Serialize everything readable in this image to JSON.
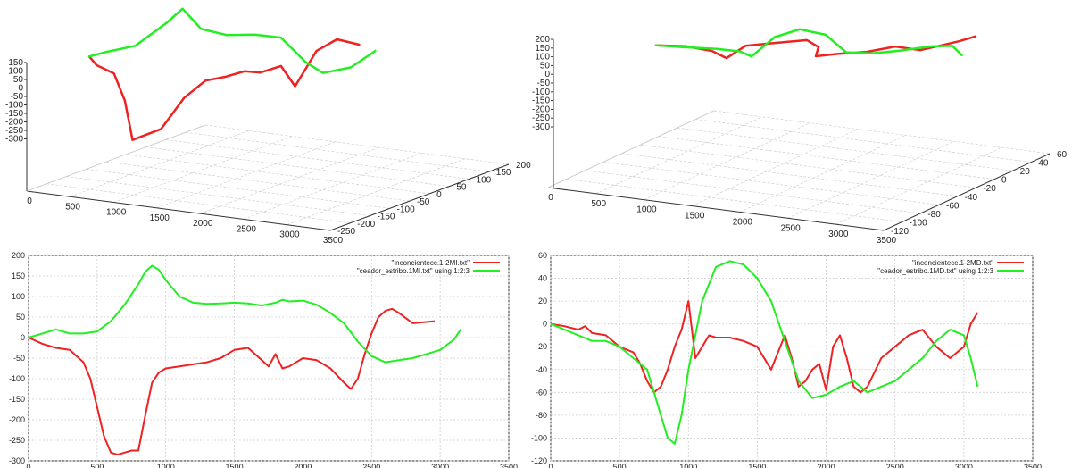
{
  "colors": {
    "series_red": "#ee2222",
    "series_green": "#22ee22",
    "axis": "#333333",
    "grid": "#cfcfcf"
  },
  "panels_3d": [
    {
      "z_ticks": [
        "150",
        "100",
        "50",
        "0",
        "-50",
        "-100",
        "-150",
        "-200",
        "-250",
        "-300"
      ],
      "x_ticks": [
        "0",
        "500",
        "1000",
        "1500",
        "2000",
        "2500",
        "3000",
        "3500"
      ],
      "y_ticks": [
        "200",
        "150",
        "100",
        "50",
        "0",
        "-50",
        "-100",
        "-150",
        "-200",
        "-250"
      ]
    },
    {
      "z_ticks": [
        "200",
        "150",
        "100",
        "50",
        "0",
        "-50",
        "-100",
        "-150",
        "-200",
        "-250",
        "-300"
      ],
      "x_ticks": [
        "0",
        "500",
        "1000",
        "1500",
        "2000",
        "2500",
        "3000",
        "3500"
      ],
      "y_ticks": [
        "60",
        "40",
        "20",
        "0",
        "-20",
        "-40",
        "-60",
        "-80",
        "-100",
        "-120"
      ]
    }
  ],
  "chart_data": [
    {
      "type": "line3d",
      "title": "",
      "xlim": [
        0,
        3500
      ],
      "zlim": [
        -300,
        150
      ],
      "series": [
        {
          "color": "#ee2222",
          "points": [
            [
              0,
              0,
              0
            ],
            [
              100,
              -30,
              -20
            ],
            [
              300,
              -60,
              -30
            ],
            [
              500,
              -150,
              -120
            ],
            [
              700,
              -280,
              -250
            ],
            [
              900,
              -260,
              -120
            ],
            [
              1100,
              -150,
              -60
            ],
            [
              1300,
              -90,
              -20
            ],
            [
              1500,
              -80,
              10
            ],
            [
              1700,
              -60,
              20
            ],
            [
              1900,
              -60,
              -10
            ],
            [
              2100,
              -40,
              20
            ],
            [
              2300,
              -110,
              -30
            ],
            [
              2500,
              20,
              10
            ],
            [
              2700,
              60,
              40
            ],
            [
              2950,
              40,
              35
            ]
          ]
        },
        {
          "color": "#22ee22",
          "points": [
            [
              0,
              0,
              0
            ],
            [
              200,
              20,
              -10
            ],
            [
              500,
              40,
              10
            ],
            [
              800,
              120,
              60
            ],
            [
              950,
              170,
              90
            ],
            [
              1200,
              100,
              40
            ],
            [
              1500,
              80,
              20
            ],
            [
              1800,
              80,
              30
            ],
            [
              2100,
              70,
              20
            ],
            [
              2400,
              -20,
              -10
            ],
            [
              2600,
              -60,
              -20
            ],
            [
              2900,
              -40,
              -10
            ],
            [
              3150,
              20,
              10
            ]
          ]
        }
      ]
    },
    {
      "type": "line3d",
      "title": "",
      "xlim": [
        0,
        3500
      ],
      "zlim": [
        -300,
        200
      ],
      "series": [
        {
          "color": "#ee2222",
          "points": [
            [
              0,
              0,
              0
            ],
            [
              300,
              -10,
              10
            ],
            [
              600,
              -30,
              -30
            ],
            [
              800,
              -60,
              -90
            ],
            [
              950,
              10,
              -40
            ],
            [
              1100,
              -20,
              120
            ],
            [
              1400,
              -10,
              150
            ],
            [
              1600,
              -30,
              60
            ],
            [
              1700,
              -50,
              -80
            ],
            [
              1900,
              -40,
              -60
            ],
            [
              2100,
              -60,
              50
            ],
            [
              2400,
              -20,
              40
            ],
            [
              2700,
              -30,
              -10
            ],
            [
              3000,
              0,
              90
            ],
            [
              3100,
              10,
              170
            ]
          ]
        },
        {
          "color": "#22ee22",
          "points": [
            [
              0,
              0,
              0
            ],
            [
              300,
              -10,
              -10
            ],
            [
              600,
              -30,
              20
            ],
            [
              800,
              -60,
              60
            ],
            [
              900,
              -100,
              80
            ],
            [
              1100,
              20,
              120
            ],
            [
              1300,
              55,
              180
            ],
            [
              1600,
              30,
              140
            ],
            [
              1900,
              -60,
              40
            ],
            [
              2200,
              -55,
              0
            ],
            [
              2500,
              -30,
              -20
            ],
            [
              2800,
              -10,
              10
            ],
            [
              3000,
              -10,
              20
            ],
            [
              3150,
              -55,
              -40
            ]
          ]
        }
      ]
    },
    {
      "type": "line",
      "title": "",
      "xlim": [
        0,
        3500
      ],
      "ylim": [
        -300,
        200
      ],
      "x_ticks": [
        0,
        500,
        1000,
        1500,
        2000,
        2500,
        3000,
        3500
      ],
      "y_ticks": [
        200,
        150,
        100,
        50,
        0,
        -50,
        -100,
        -150,
        -200,
        -250,
        -300
      ],
      "legend_position": "top-right",
      "series": [
        {
          "name": "\"inconcientecc.1-2MI.txt\"",
          "color": "#ee2222",
          "x": [
            0,
            100,
            200,
            300,
            400,
            450,
            500,
            550,
            600,
            650,
            700,
            750,
            800,
            850,
            900,
            950,
            1000,
            1100,
            1200,
            1300,
            1400,
            1500,
            1600,
            1700,
            1750,
            1800,
            1850,
            1900,
            2000,
            2100,
            2200,
            2300,
            2350,
            2400,
            2450,
            2500,
            2550,
            2600,
            2650,
            2700,
            2800,
            2960
          ],
          "y": [
            0,
            -15,
            -25,
            -30,
            -60,
            -100,
            -170,
            -240,
            -280,
            -285,
            -280,
            -275,
            -275,
            -190,
            -110,
            -85,
            -75,
            -70,
            -65,
            -60,
            -50,
            -30,
            -25,
            -55,
            -70,
            -40,
            -75,
            -70,
            -50,
            -55,
            -75,
            -110,
            -125,
            -100,
            -40,
            10,
            50,
            65,
            70,
            60,
            35,
            40
          ]
        },
        {
          "name": "\"ceador_estribo.1MI.txt\" using 1:2:3",
          "color": "#22ee22",
          "x": [
            0,
            100,
            200,
            300,
            400,
            500,
            600,
            700,
            800,
            850,
            900,
            950,
            1000,
            1100,
            1200,
            1300,
            1400,
            1500,
            1600,
            1700,
            1800,
            1850,
            1900,
            2000,
            2100,
            2200,
            2300,
            2400,
            2500,
            2600,
            2700,
            2800,
            2900,
            3000,
            3100,
            3150
          ],
          "y": [
            0,
            10,
            20,
            10,
            10,
            15,
            40,
            80,
            130,
            160,
            175,
            165,
            140,
            100,
            85,
            82,
            83,
            85,
            83,
            78,
            85,
            92,
            88,
            90,
            80,
            60,
            35,
            -10,
            -45,
            -60,
            -55,
            -50,
            -40,
            -30,
            -5,
            20
          ]
        }
      ]
    },
    {
      "type": "line",
      "title": "",
      "xlim": [
        0,
        3500
      ],
      "ylim": [
        -120,
        60
      ],
      "x_ticks": [
        0,
        500,
        1000,
        1500,
        2000,
        2500,
        3000,
        3500
      ],
      "y_ticks": [
        60,
        40,
        20,
        0,
        -20,
        -40,
        -60,
        -80,
        -100,
        -120
      ],
      "legend_position": "top-right",
      "series": [
        {
          "name": "\"inconcientecc.1-2MD.txt\"",
          "color": "#ee2222",
          "x": [
            0,
            100,
            200,
            250,
            300,
            400,
            500,
            600,
            650,
            700,
            750,
            800,
            850,
            900,
            950,
            1000,
            1050,
            1100,
            1150,
            1200,
            1300,
            1400,
            1500,
            1600,
            1700,
            1750,
            1800,
            1850,
            1900,
            1950,
            2000,
            2050,
            2100,
            2150,
            2200,
            2250,
            2300,
            2400,
            2500,
            2600,
            2700,
            2800,
            2900,
            3000,
            3050,
            3100
          ],
          "y": [
            0,
            -2,
            -5,
            -2,
            -8,
            -10,
            -20,
            -25,
            -35,
            -50,
            -60,
            -55,
            -40,
            -20,
            -5,
            20,
            -30,
            -20,
            -10,
            -12,
            -12,
            -15,
            -20,
            -40,
            -10,
            -30,
            -55,
            -50,
            -40,
            -35,
            -58,
            -20,
            -10,
            -30,
            -55,
            -60,
            -55,
            -30,
            -20,
            -10,
            -5,
            -20,
            -30,
            -20,
            0,
            10
          ]
        },
        {
          "name": "\"ceador_estribo.1MD.txt\" using 1:2:3",
          "color": "#22ee22",
          "x": [
            0,
            100,
            200,
            300,
            400,
            500,
            600,
            700,
            750,
            800,
            850,
            900,
            950,
            1000,
            1100,
            1200,
            1300,
            1400,
            1500,
            1600,
            1700,
            1800,
            1900,
            2000,
            2100,
            2200,
            2300,
            2400,
            2500,
            2600,
            2700,
            2800,
            2900,
            3000,
            3050,
            3100
          ],
          "y": [
            0,
            -5,
            -10,
            -15,
            -15,
            -20,
            -30,
            -40,
            -60,
            -80,
            -100,
            -105,
            -80,
            -40,
            20,
            50,
            55,
            52,
            40,
            20,
            -15,
            -50,
            -65,
            -62,
            -55,
            -50,
            -60,
            -55,
            -50,
            -40,
            -30,
            -15,
            -5,
            -10,
            -30,
            -55
          ]
        }
      ]
    }
  ]
}
